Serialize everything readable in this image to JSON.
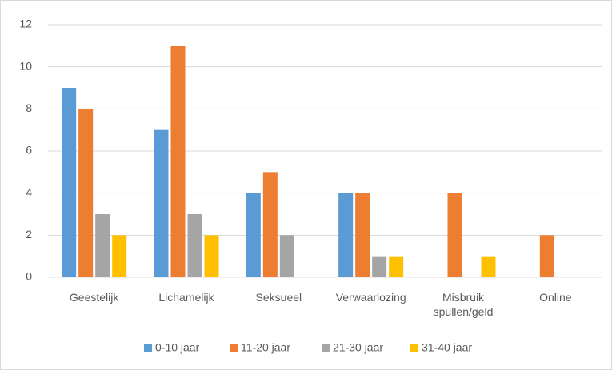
{
  "chart_data": {
    "type": "bar",
    "categories": [
      "Geestelijk",
      "Lichamelijk",
      "Seksueel",
      "Verwaarlozing",
      "Misbruik spullen/geld",
      "Online"
    ],
    "series": [
      {
        "name": "0-10 jaar",
        "color": "#5b9bd5",
        "values": [
          9,
          7,
          4,
          4,
          0,
          0
        ]
      },
      {
        "name": "11-20 jaar",
        "color": "#ed7d31",
        "values": [
          8,
          11,
          5,
          4,
          4,
          2
        ]
      },
      {
        "name": "21-30 jaar",
        "color": "#a5a5a5",
        "values": [
          3,
          3,
          2,
          1,
          0,
          0
        ]
      },
      {
        "name": "31-40 jaar",
        "color": "#ffc000",
        "values": [
          2,
          2,
          0,
          1,
          1,
          0
        ]
      }
    ],
    "ylim": [
      0,
      12
    ],
    "yticks": [
      0,
      2,
      4,
      6,
      8,
      10,
      12
    ],
    "grid": true,
    "legend": "bottom"
  }
}
